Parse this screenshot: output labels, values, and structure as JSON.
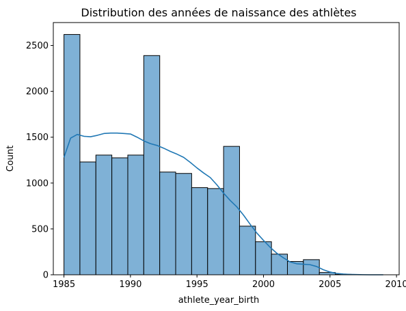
{
  "chart_data": {
    "type": "bar",
    "title": "Distribution des années de naissance des athlètes",
    "xlabel": "athlete_year_birth",
    "ylabel": "Count",
    "xlim": [
      1984.2,
      2010.2
    ],
    "ylim": [
      0,
      2750
    ],
    "xticks": [
      1985,
      1990,
      1995,
      2000,
      2005,
      2010
    ],
    "yticks": [
      0,
      500,
      1000,
      1500,
      2000,
      2500
    ],
    "bin_edges": [
      1985,
      1986.2,
      1987.4,
      1988.6,
      1989.8,
      1991,
      1992.2,
      1993.4,
      1994.6,
      1995.8,
      1997,
      1998.2,
      1999.4,
      2000.6,
      2001.8,
      2003,
      2004.2,
      2005.4,
      2006.6,
      2007.8,
      2009
    ],
    "counts": [
      2620,
      1230,
      1305,
      1275,
      1305,
      2390,
      1120,
      1105,
      950,
      940,
      1400,
      530,
      360,
      225,
      145,
      165,
      25,
      5,
      0,
      0
    ],
    "bar_color": "#7fb1d6",
    "bar_edge_color": "#000000",
    "kde": {
      "color": "#1f77b4",
      "x": [
        1985,
        1985.5,
        1986,
        1986.5,
        1987,
        1987.5,
        1988,
        1988.5,
        1989,
        1989.5,
        1990,
        1990.5,
        1991,
        1991.5,
        1992,
        1992.5,
        1993,
        1993.5,
        1994,
        1994.5,
        1995,
        1995.5,
        1996,
        1996.5,
        1997,
        1997.5,
        1998,
        1998.5,
        1999,
        1999.5,
        2000,
        2000.5,
        2001,
        2001.5,
        2002,
        2002.5,
        2003,
        2003.5,
        2004,
        2004.5,
        2005,
        2005.5,
        2006,
        2006.5,
        2007,
        2007.5,
        2008,
        2008.5,
        2009
      ],
      "y": [
        1280,
        1490,
        1530,
        1510,
        1505,
        1520,
        1540,
        1545,
        1545,
        1540,
        1535,
        1500,
        1460,
        1430,
        1410,
        1380,
        1345,
        1315,
        1280,
        1225,
        1165,
        1110,
        1060,
        980,
        890,
        810,
        740,
        650,
        550,
        455,
        375,
        300,
        235,
        185,
        140,
        120,
        115,
        110,
        90,
        55,
        30,
        15,
        8,
        4,
        2,
        1,
        0,
        0,
        0
      ]
    }
  }
}
